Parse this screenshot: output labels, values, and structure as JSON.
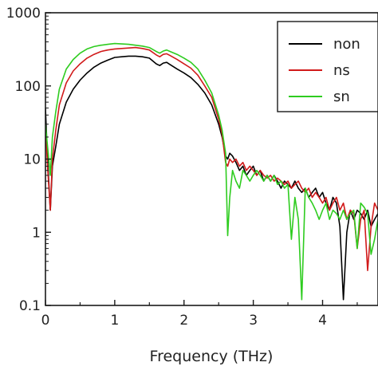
{
  "chart_data": {
    "type": "line",
    "title": "",
    "xlabel": "Frequency (THz)",
    "ylabel": "",
    "xlim": [
      0,
      4.8
    ],
    "ylim": [
      0.1,
      1000
    ],
    "y_scale": "log",
    "grid": false,
    "legend_position": "top-right",
    "x_ticks": [
      0,
      1,
      2,
      3,
      4
    ],
    "x_tick_labels": [
      "0",
      "1",
      "2",
      "3",
      "4"
    ],
    "y_ticks": [
      0.1,
      1,
      10,
      100,
      1000
    ],
    "y_tick_labels": [
      "0.1",
      "1",
      "10",
      "100",
      "1000"
    ],
    "series": [
      {
        "name": "non",
        "color": "#000000",
        "x": [
          0,
          0.03,
          0.07,
          0.1,
          0.15,
          0.2,
          0.3,
          0.4,
          0.5,
          0.6,
          0.7,
          0.8,
          0.9,
          1.0,
          1.1,
          1.2,
          1.3,
          1.4,
          1.5,
          1.6,
          1.65,
          1.7,
          1.75,
          1.8,
          1.9,
          2.0,
          2.1,
          2.2,
          2.3,
          2.4,
          2.5,
          2.55,
          2.6,
          2.63,
          2.66,
          2.7,
          2.75,
          2.8,
          2.85,
          2.9,
          2.95,
          3.0,
          3.05,
          3.1,
          3.15,
          3.2,
          3.25,
          3.3,
          3.35,
          3.4,
          3.45,
          3.5,
          3.55,
          3.6,
          3.65,
          3.7,
          3.75,
          3.8,
          3.85,
          3.9,
          3.95,
          4.0,
          4.05,
          4.1,
          4.15,
          4.2,
          4.25,
          4.3,
          4.35,
          4.4,
          4.45,
          4.5,
          4.55,
          4.6,
          4.65,
          4.7,
          4.75,
          4.8
        ],
        "values": [
          50,
          10,
          2,
          8,
          15,
          30,
          60,
          90,
          120,
          150,
          180,
          205,
          225,
          245,
          250,
          255,
          255,
          250,
          240,
          200,
          190,
          205,
          210,
          195,
          170,
          150,
          130,
          105,
          80,
          55,
          30,
          20,
          11,
          10,
          12,
          11,
          9,
          7,
          8,
          6,
          7,
          8,
          6,
          7,
          5,
          6,
          5,
          6,
          5,
          4,
          5,
          4.5,
          4,
          5,
          4,
          3.5,
          4,
          3,
          3.5,
          4,
          3,
          3.5,
          2.5,
          2,
          3,
          2.5,
          1.2,
          0.12,
          1,
          2,
          1.5,
          2,
          1.8,
          1.5,
          2,
          1.2,
          1.5,
          1.8
        ]
      },
      {
        "name": "ns",
        "color": "#d11a1a",
        "x": [
          0,
          0.03,
          0.07,
          0.1,
          0.15,
          0.2,
          0.3,
          0.4,
          0.5,
          0.6,
          0.7,
          0.8,
          0.9,
          1.0,
          1.1,
          1.2,
          1.3,
          1.4,
          1.5,
          1.6,
          1.65,
          1.7,
          1.75,
          1.8,
          1.9,
          2.0,
          2.1,
          2.2,
          2.3,
          2.4,
          2.5,
          2.55,
          2.6,
          2.63,
          2.66,
          2.7,
          2.75,
          2.8,
          2.85,
          2.9,
          2.95,
          3.0,
          3.05,
          3.1,
          3.15,
          3.2,
          3.25,
          3.3,
          3.35,
          3.4,
          3.45,
          3.5,
          3.55,
          3.6,
          3.65,
          3.7,
          3.75,
          3.8,
          3.85,
          3.9,
          3.95,
          4.0,
          4.05,
          4.1,
          4.15,
          4.2,
          4.25,
          4.3,
          4.35,
          4.4,
          4.45,
          4.5,
          4.55,
          4.6,
          4.65,
          4.7,
          4.75,
          4.8
        ],
        "values": [
          30,
          8,
          2,
          10,
          25,
          55,
          110,
          160,
          200,
          240,
          270,
          295,
          310,
          320,
          325,
          330,
          335,
          325,
          310,
          265,
          250,
          270,
          275,
          260,
          230,
          200,
          175,
          140,
          100,
          70,
          35,
          22,
          9,
          8,
          10,
          9,
          10,
          8,
          9,
          7,
          8,
          7,
          6,
          7,
          6,
          5.5,
          6,
          5,
          5.5,
          5,
          4.5,
          5,
          4,
          4.5,
          5,
          4,
          3.5,
          4,
          3,
          3.5,
          3,
          2.5,
          3,
          2,
          2.5,
          3,
          2,
          2.5,
          1.5,
          2,
          1.8,
          0.6,
          1.5,
          2,
          0.3,
          1.2,
          2.5,
          2
        ]
      },
      {
        "name": "sn",
        "color": "#2ecc1f",
        "x": [
          0,
          0.03,
          0.07,
          0.1,
          0.15,
          0.2,
          0.3,
          0.4,
          0.5,
          0.6,
          0.7,
          0.8,
          0.9,
          1.0,
          1.1,
          1.2,
          1.3,
          1.4,
          1.5,
          1.6,
          1.65,
          1.7,
          1.75,
          1.8,
          1.9,
          2.0,
          2.1,
          2.2,
          2.3,
          2.4,
          2.5,
          2.55,
          2.6,
          2.63,
          2.66,
          2.7,
          2.75,
          2.8,
          2.85,
          2.9,
          2.95,
          3.0,
          3.05,
          3.1,
          3.15,
          3.2,
          3.25,
          3.3,
          3.35,
          3.4,
          3.45,
          3.5,
          3.55,
          3.6,
          3.65,
          3.7,
          3.75,
          3.8,
          3.85,
          3.9,
          3.95,
          4.0,
          4.05,
          4.1,
          4.15,
          4.2,
          4.25,
          4.3,
          4.35,
          4.4,
          4.45,
          4.5,
          4.55,
          4.6,
          4.65,
          4.7,
          4.75,
          4.8
        ],
        "values": [
          30,
          15,
          6,
          20,
          45,
          90,
          170,
          230,
          280,
          320,
          345,
          360,
          370,
          380,
          375,
          370,
          360,
          350,
          335,
          295,
          280,
          300,
          310,
          295,
          270,
          240,
          210,
          170,
          120,
          80,
          40,
          25,
          12,
          0.9,
          3,
          7,
          5,
          4,
          7,
          6,
          5,
          6,
          7,
          6,
          5,
          6,
          5,
          6,
          4.5,
          5,
          4,
          4.5,
          0.8,
          3,
          1.5,
          0.12,
          4,
          3,
          2.5,
          2,
          1.5,
          2,
          2.5,
          1.5,
          2,
          1.8,
          1.5,
          2,
          1.5,
          1.8,
          2,
          0.6,
          2.5,
          2.2,
          1.8,
          0.5,
          0.8,
          1.5
        ]
      }
    ]
  }
}
